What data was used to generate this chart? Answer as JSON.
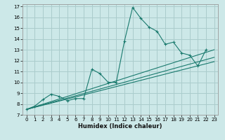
{
  "xlabel": "Humidex (Indice chaleur)",
  "bg_color": "#cce8e8",
  "grid_color": "#aacccc",
  "line_color": "#1a7a6e",
  "xlim": [
    -0.5,
    23.5
  ],
  "ylim": [
    7,
    17.2
  ],
  "xticks": [
    0,
    1,
    2,
    3,
    4,
    5,
    6,
    7,
    8,
    9,
    10,
    11,
    12,
    13,
    14,
    15,
    16,
    17,
    18,
    19,
    20,
    21,
    22,
    23
  ],
  "yticks": [
    7,
    8,
    9,
    10,
    11,
    12,
    13,
    14,
    15,
    16,
    17
  ],
  "main_x": [
    0,
    1,
    2,
    3,
    4,
    5,
    6,
    7,
    8,
    9,
    10,
    11,
    12,
    13,
    14,
    15,
    16,
    17,
    18,
    19,
    20,
    21,
    22
  ],
  "main_y": [
    7.5,
    7.8,
    8.4,
    8.9,
    8.7,
    8.3,
    8.5,
    8.5,
    11.2,
    10.8,
    10.0,
    10.0,
    13.8,
    16.9,
    15.9,
    15.1,
    14.7,
    13.5,
    13.7,
    12.7,
    12.5,
    11.5,
    13.0
  ],
  "trend_lines": [
    {
      "x": [
        0,
        23
      ],
      "y": [
        7.5,
        13.0
      ]
    },
    {
      "x": [
        0,
        23
      ],
      "y": [
        7.5,
        12.3
      ]
    },
    {
      "x": [
        0,
        23
      ],
      "y": [
        7.5,
        11.9
      ]
    }
  ]
}
